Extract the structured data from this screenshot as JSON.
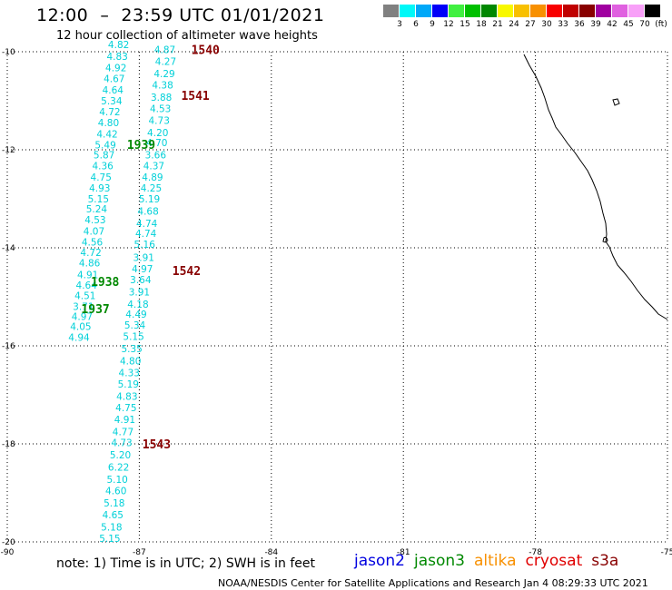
{
  "header": {
    "title": "12:00  –  23:59 UTC 01/01/2021",
    "subtitle": "12 hour collection of altimeter wave heights"
  },
  "scale": {
    "colors": [
      "#808080",
      "#00f8f8",
      "#00a8f8",
      "#0000f8",
      "#40f040",
      "#00c000",
      "#008800",
      "#f8f800",
      "#f8c000",
      "#f89000",
      "#f80000",
      "#c00000",
      "#880000",
      "#a000a0",
      "#e060e0",
      "#f8a0f8",
      "#000000"
    ],
    "labels": [
      "3",
      "6",
      "9",
      "12",
      "15",
      "18",
      "21",
      "24",
      "27",
      "30",
      "33",
      "36",
      "39",
      "42",
      "45",
      "70",
      "(ft)"
    ]
  },
  "axes": {
    "lon_ticks": [
      "-90",
      "-87",
      "-84",
      "-81",
      "-78",
      "-75"
    ],
    "lat_ticks": [
      "-10",
      "-12",
      "-14",
      "-16",
      "-18",
      "-20"
    ]
  },
  "tracks": [
    {
      "label": "1540",
      "label_color": "#880000",
      "points": [
        {
          "lat": -10.03,
          "lon": -86.42,
          "v": "4.87"
        },
        {
          "lat": -10.27,
          "lon": -86.4,
          "v": "4.27"
        },
        {
          "lat": -10.52,
          "lon": -86.43,
          "v": "4.29"
        },
        {
          "lat": -10.75,
          "lon": -86.47,
          "v": "4.38"
        },
        {
          "lat": -11.0,
          "lon": -86.5,
          "v": "3.88"
        },
        {
          "lat": -11.23,
          "lon": -86.52,
          "v": "4.53"
        },
        {
          "lat": -11.47,
          "lon": -86.55,
          "v": "4.73"
        },
        {
          "lat": -11.72,
          "lon": -86.58,
          "v": "4.20"
        },
        {
          "lat": -11.93,
          "lon": -86.6,
          "v": "4.70"
        },
        {
          "lat": -12.18,
          "lon": -86.63,
          "v": "3.66"
        },
        {
          "lat": -12.4,
          "lon": -86.67,
          "v": "4.37"
        },
        {
          "lat": -12.63,
          "lon": -86.7,
          "v": "4.89"
        },
        {
          "lat": -12.85,
          "lon": -86.73,
          "v": "4.25"
        },
        {
          "lat": -13.07,
          "lon": -86.77,
          "v": "5.19"
        },
        {
          "lat": -13.32,
          "lon": -86.8,
          "v": "4.68"
        },
        {
          "lat": -13.57,
          "lon": -86.83,
          "v": "4.74"
        },
        {
          "lat": -13.78,
          "lon": -86.85,
          "v": "4.74"
        },
        {
          "lat": -14.0,
          "lon": -86.88,
          "v": "5.16"
        },
        {
          "lat": -14.27,
          "lon": -86.9,
          "v": "3.91"
        },
        {
          "lat": -14.5,
          "lon": -86.93,
          "v": "4.97"
        },
        {
          "lat": -14.72,
          "lon": -86.97,
          "v": "3.64"
        },
        {
          "lat": -14.97,
          "lon": -87.0,
          "v": "3.91"
        },
        {
          "lat": -15.22,
          "lon": -87.03,
          "v": "4.18"
        },
        {
          "lat": -15.43,
          "lon": -87.07,
          "v": "4.49"
        },
        {
          "lat": -15.65,
          "lon": -87.1,
          "v": "5.34"
        },
        {
          "lat": -15.88,
          "lon": -87.13,
          "v": "5.15"
        },
        {
          "lat": -16.13,
          "lon": -87.17,
          "v": "5.35"
        },
        {
          "lat": -16.38,
          "lon": -87.2,
          "v": "4.80"
        },
        {
          "lat": -16.62,
          "lon": -87.23,
          "v": "4.33"
        },
        {
          "lat": -16.85,
          "lon": -87.25,
          "v": "5.19"
        },
        {
          "lat": -17.1,
          "lon": -87.28,
          "v": "4.83"
        },
        {
          "lat": -17.33,
          "lon": -87.3,
          "v": "4.75"
        },
        {
          "lat": -17.57,
          "lon": -87.33,
          "v": "4.91"
        },
        {
          "lat": -17.82,
          "lon": -87.37,
          "v": "4.77"
        },
        {
          "lat": -18.05,
          "lon": -87.4,
          "v": "4.73"
        },
        {
          "lat": -18.3,
          "lon": -87.43,
          "v": "5.20"
        },
        {
          "lat": -18.55,
          "lon": -87.47,
          "v": "6.22"
        },
        {
          "lat": -18.8,
          "lon": -87.5,
          "v": "5.10"
        },
        {
          "lat": -19.03,
          "lon": -87.53,
          "v": "4.60"
        },
        {
          "lat": -19.28,
          "lon": -87.57,
          "v": "5.18"
        },
        {
          "lat": -19.52,
          "lon": -87.6,
          "v": "4.65"
        },
        {
          "lat": -19.77,
          "lon": -87.63,
          "v": "5.18"
        },
        {
          "lat": -20.0,
          "lon": -87.67,
          "v": "5.15"
        }
      ]
    },
    {
      "label": "1939",
      "label_color": "#008800",
      "points": [
        {
          "lat": -9.93,
          "lon": -87.47,
          "v": "4.82"
        },
        {
          "lat": -10.17,
          "lon": -87.5,
          "v": "4.83"
        },
        {
          "lat": -10.4,
          "lon": -87.53,
          "v": "4.92"
        },
        {
          "lat": -10.62,
          "lon": -87.57,
          "v": "4.67"
        },
        {
          "lat": -10.85,
          "lon": -87.6,
          "v": "4.64"
        },
        {
          "lat": -11.07,
          "lon": -87.63,
          "v": "5.34"
        },
        {
          "lat": -11.3,
          "lon": -87.67,
          "v": "4.72"
        },
        {
          "lat": -11.52,
          "lon": -87.7,
          "v": "4.80"
        },
        {
          "lat": -11.75,
          "lon": -87.73,
          "v": "4.42"
        },
        {
          "lat": -11.97,
          "lon": -87.77,
          "v": "5.49"
        },
        {
          "lat": -12.18,
          "lon": -87.8,
          "v": "5.87"
        },
        {
          "lat": -12.4,
          "lon": -87.83,
          "v": "4.36"
        },
        {
          "lat": -12.63,
          "lon": -87.87,
          "v": "4.75"
        },
        {
          "lat": -12.85,
          "lon": -87.9,
          "v": "4.93"
        },
        {
          "lat": -13.07,
          "lon": -87.93,
          "v": "5.15"
        },
        {
          "lat": -13.28,
          "lon": -87.97,
          "v": "5.24"
        },
        {
          "lat": -13.5,
          "lon": -88.0,
          "v": "4.53"
        },
        {
          "lat": -13.73,
          "lon": -88.03,
          "v": "4.07"
        },
        {
          "lat": -13.95,
          "lon": -88.07,
          "v": "4.56"
        }
      ]
    },
    {
      "label": "1938",
      "label_color": "#008800",
      "points": [
        {
          "lat": -14.17,
          "lon": -88.1,
          "v": "4.72"
        },
        {
          "lat": -14.38,
          "lon": -88.13,
          "v": "4.86"
        },
        {
          "lat": -14.62,
          "lon": -88.17,
          "v": "4.91"
        },
        {
          "lat": -14.83,
          "lon": -88.2,
          "v": "4.64"
        },
        {
          "lat": -15.05,
          "lon": -88.23,
          "v": "4.51"
        },
        {
          "lat": -15.27,
          "lon": -88.27,
          "v": "3.71"
        },
        {
          "lat": -15.47,
          "lon": -88.3,
          "v": "4.97"
        }
      ]
    },
    {
      "label": "1937",
      "label_color": "#008800",
      "points": [
        {
          "lat": -15.68,
          "lon": -88.33,
          "v": "4.05"
        },
        {
          "lat": -15.9,
          "lon": -88.37,
          "v": "4.94"
        }
      ]
    }
  ],
  "track_labels": [
    {
      "text": "1540",
      "color": "#880000",
      "lat": -10.05,
      "lon": -85.82
    },
    {
      "text": "1541",
      "color": "#880000",
      "lat": -10.98,
      "lon": -86.05
    },
    {
      "text": "1939",
      "color": "#008800",
      "lat": -11.98,
      "lon": -87.28
    },
    {
      "text": "1542",
      "color": "#880000",
      "lat": -14.56,
      "lon": -86.25
    },
    {
      "text": "1938",
      "color": "#008800",
      "lat": -14.78,
      "lon": -88.1
    },
    {
      "text": "1937",
      "color": "#008800",
      "lat": -15.33,
      "lon": -88.32
    },
    {
      "text": "1543",
      "color": "#880000",
      "lat": -18.09,
      "lon": -86.93
    }
  ],
  "footer": {
    "note": "note:  1) Time is in UTC;  2) SWH is in feet",
    "credit": "NOAA/NESDIS Center for Satellite Applications and Research      Jan  4 08:29:33 UTC 2021",
    "satellites": [
      {
        "name": "jason2",
        "color": "#0000e0"
      },
      {
        "name": "jason3",
        "color": "#008800"
      },
      {
        "name": "altika",
        "color": "#f89000"
      },
      {
        "name": "cryosat",
        "color": "#e00000"
      },
      {
        "name": "s3a",
        "color": "#880000"
      }
    ]
  }
}
